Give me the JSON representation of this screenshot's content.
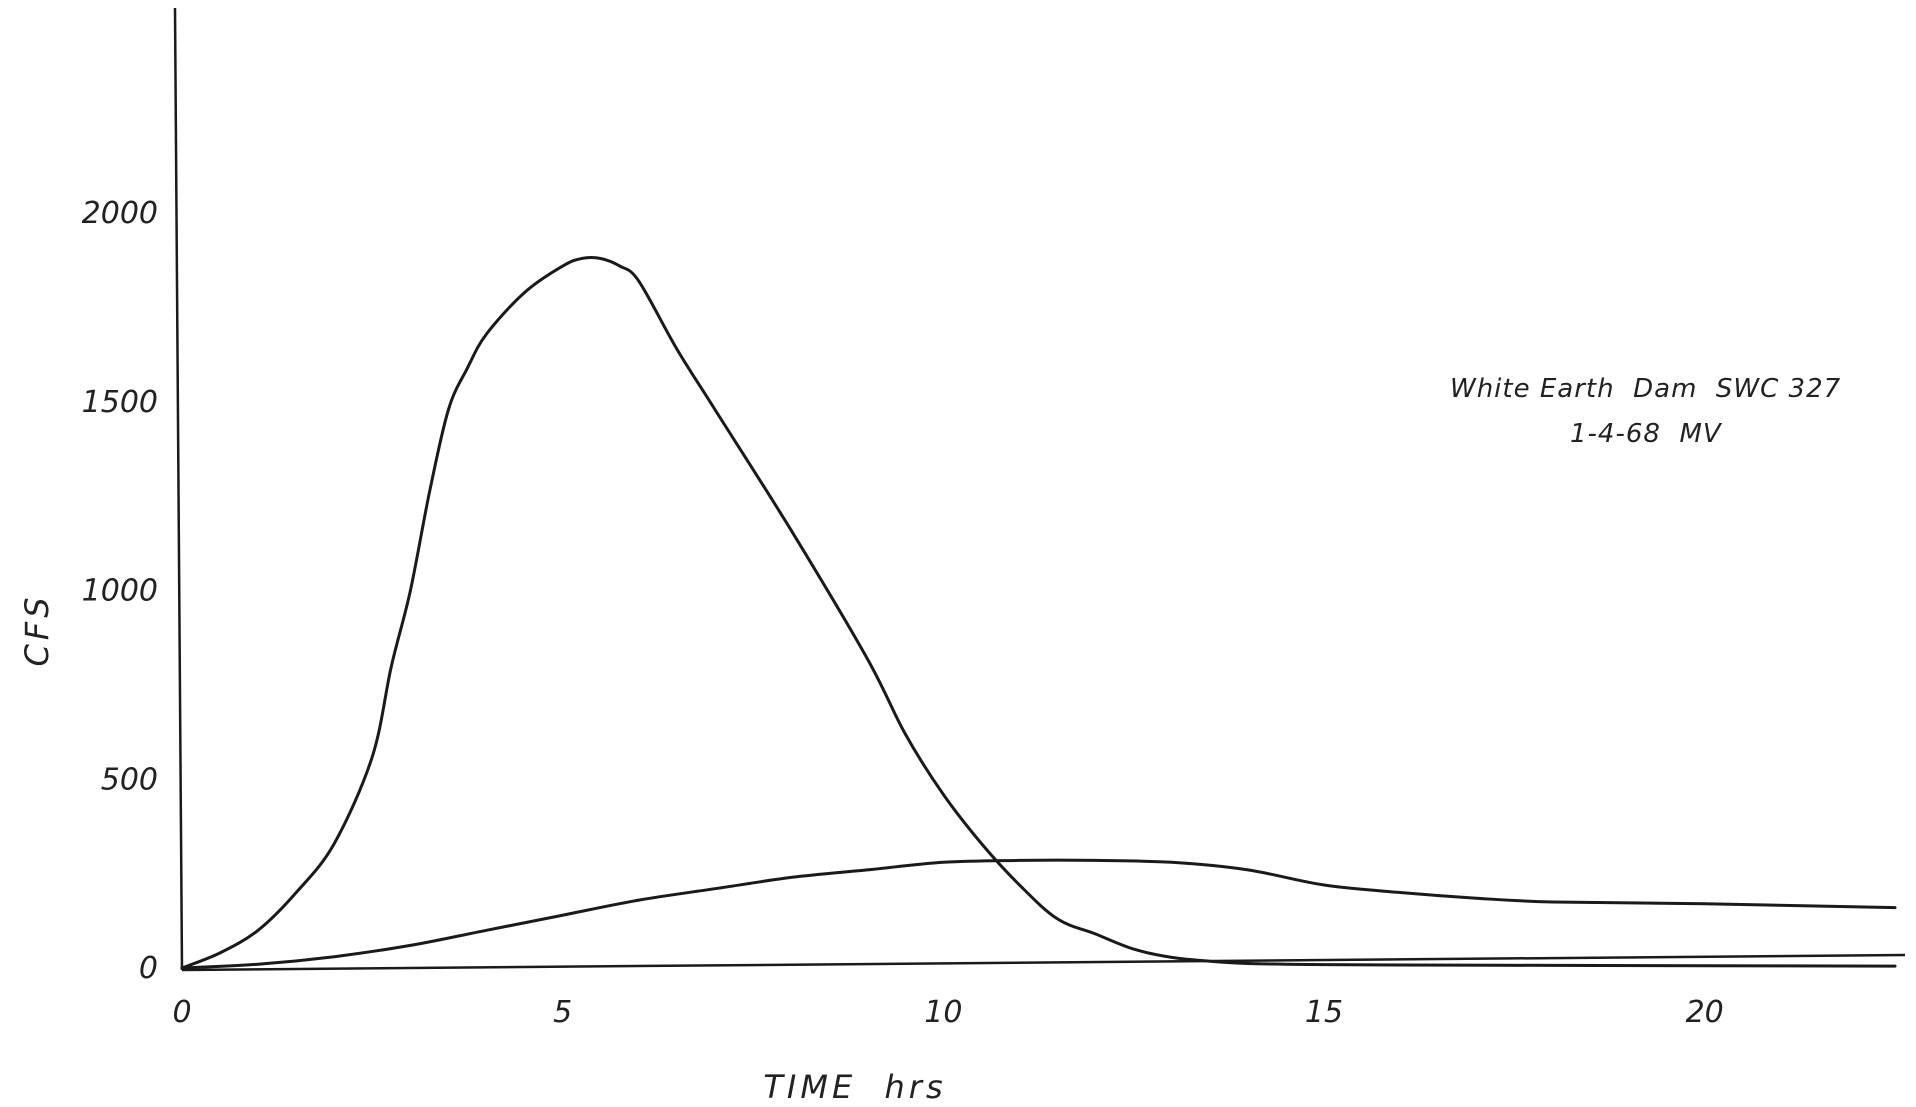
{
  "chart_data": {
    "type": "line",
    "title": "",
    "xlabel": "TIME  hrs",
    "ylabel": "CFS",
    "xlim": [
      0,
      22.5
    ],
    "ylim": [
      0,
      2300
    ],
    "x_ticks": [
      "0",
      "5",
      "10",
      "15",
      "20"
    ],
    "y_ticks": [
      "0",
      "500",
      "1000",
      "1500",
      "2000"
    ],
    "x_tick_values": [
      0,
      5,
      10,
      15,
      20
    ],
    "y_tick_values": [
      0,
      500,
      1000,
      1500,
      2000
    ],
    "grid": false,
    "annotation": {
      "line1": "White Earth  Dam  SWC 327",
      "line2": "1-4-68  MV"
    },
    "series": [
      {
        "x": [
          0,
          0.5,
          1,
          1.5,
          2,
          2.5,
          2.75,
          3,
          3.25,
          3.5,
          3.75,
          4,
          4.5,
          5,
          5.25,
          5.5,
          5.75,
          6,
          6.5,
          7,
          8,
          9,
          9.5,
          10,
          10.5,
          11,
          11.5,
          12,
          12.5,
          13,
          13.5,
          14,
          14.5,
          15,
          16,
          18,
          20,
          22.5
        ],
        "values": [
          0,
          40,
          100,
          200,
          330,
          560,
          800,
          1000,
          1260,
          1480,
          1590,
          1680,
          1790,
          1860,
          1880,
          1880,
          1860,
          1820,
          1640,
          1480,
          1160,
          820,
          620,
          460,
          330,
          220,
          130,
          90,
          50,
          28,
          18,
          12,
          10,
          9,
          8,
          7,
          6,
          5
        ]
      },
      {
        "x": [
          0,
          1,
          2,
          3,
          4,
          5,
          6,
          7,
          8,
          9,
          10,
          11,
          12,
          13,
          14,
          15,
          16,
          17,
          18,
          20,
          22.5
        ],
        "values": [
          0,
          10,
          30,
          60,
          100,
          140,
          180,
          210,
          240,
          260,
          280,
          285,
          285,
          280,
          260,
          220,
          200,
          185,
          175,
          170,
          160
        ]
      }
    ]
  }
}
